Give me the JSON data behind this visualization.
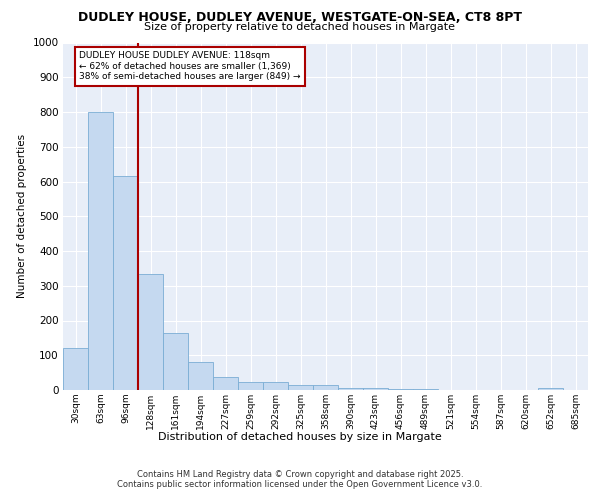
{
  "title_line1": "DUDLEY HOUSE, DUDLEY AVENUE, WESTGATE-ON-SEA, CT8 8PT",
  "title_line2": "Size of property relative to detached houses in Margate",
  "xlabel": "Distribution of detached houses by size in Margate",
  "ylabel": "Number of detached properties",
  "bar_color": "#c5d9f0",
  "bar_edge_color": "#7aadd4",
  "background_color": "#e8eef8",
  "grid_color": "#ffffff",
  "categories": [
    "30sqm",
    "63sqm",
    "96sqm",
    "128sqm",
    "161sqm",
    "194sqm",
    "227sqm",
    "259sqm",
    "292sqm",
    "325sqm",
    "358sqm",
    "390sqm",
    "423sqm",
    "456sqm",
    "489sqm",
    "521sqm",
    "554sqm",
    "587sqm",
    "620sqm",
    "652sqm",
    "685sqm"
  ],
  "values": [
    122,
    800,
    615,
    333,
    165,
    82,
    38,
    23,
    22,
    15,
    15,
    7,
    5,
    4,
    2,
    1,
    0,
    0,
    0,
    5,
    0
  ],
  "ylim": [
    0,
    1000
  ],
  "yticks": [
    0,
    100,
    200,
    300,
    400,
    500,
    600,
    700,
    800,
    900,
    1000
  ],
  "property_line_x": 2.5,
  "annotation_text": "DUDLEY HOUSE DUDLEY AVENUE: 118sqm\n← 62% of detached houses are smaller (1,369)\n38% of semi-detached houses are larger (849) →",
  "annotation_box_color": "#ffffff",
  "annotation_box_edge_color": "#aa0000",
  "red_line_color": "#aa0000",
  "footer_line1": "Contains HM Land Registry data © Crown copyright and database right 2025.",
  "footer_line2": "Contains public sector information licensed under the Open Government Licence v3.0."
}
